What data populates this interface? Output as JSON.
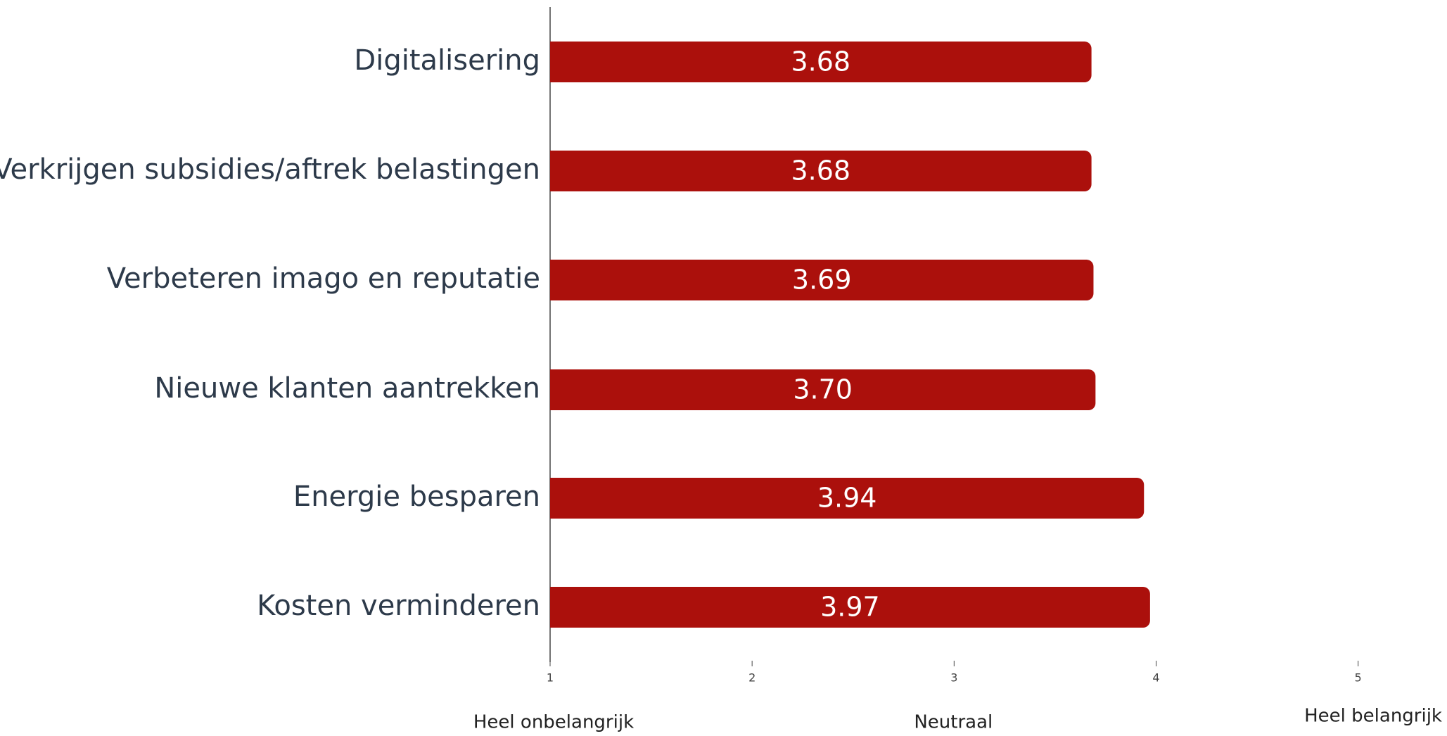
{
  "chart_data": {
    "type": "barh",
    "categories": [
      "Digitalisering",
      "Verkrijgen subsidies/aftrek belastingen",
      "Verbeteren imago en reputatie",
      "Nieuwe klanten aantrekken",
      "Energie besparen",
      "Kosten verminderen"
    ],
    "values": [
      3.68,
      3.68,
      3.69,
      3.7,
      3.94,
      3.97
    ],
    "value_labels": [
      "3.68",
      "3.68",
      "3.69",
      "3.70",
      "3.94",
      "3.97"
    ],
    "color": "#ab100c",
    "xlim": [
      1,
      5.44
    ],
    "xticks": [
      1,
      2,
      3,
      4,
      5
    ],
    "scale_labels": [
      "Heel onbelangrijk",
      "Neutraal",
      "Heel belangrijk"
    ]
  }
}
